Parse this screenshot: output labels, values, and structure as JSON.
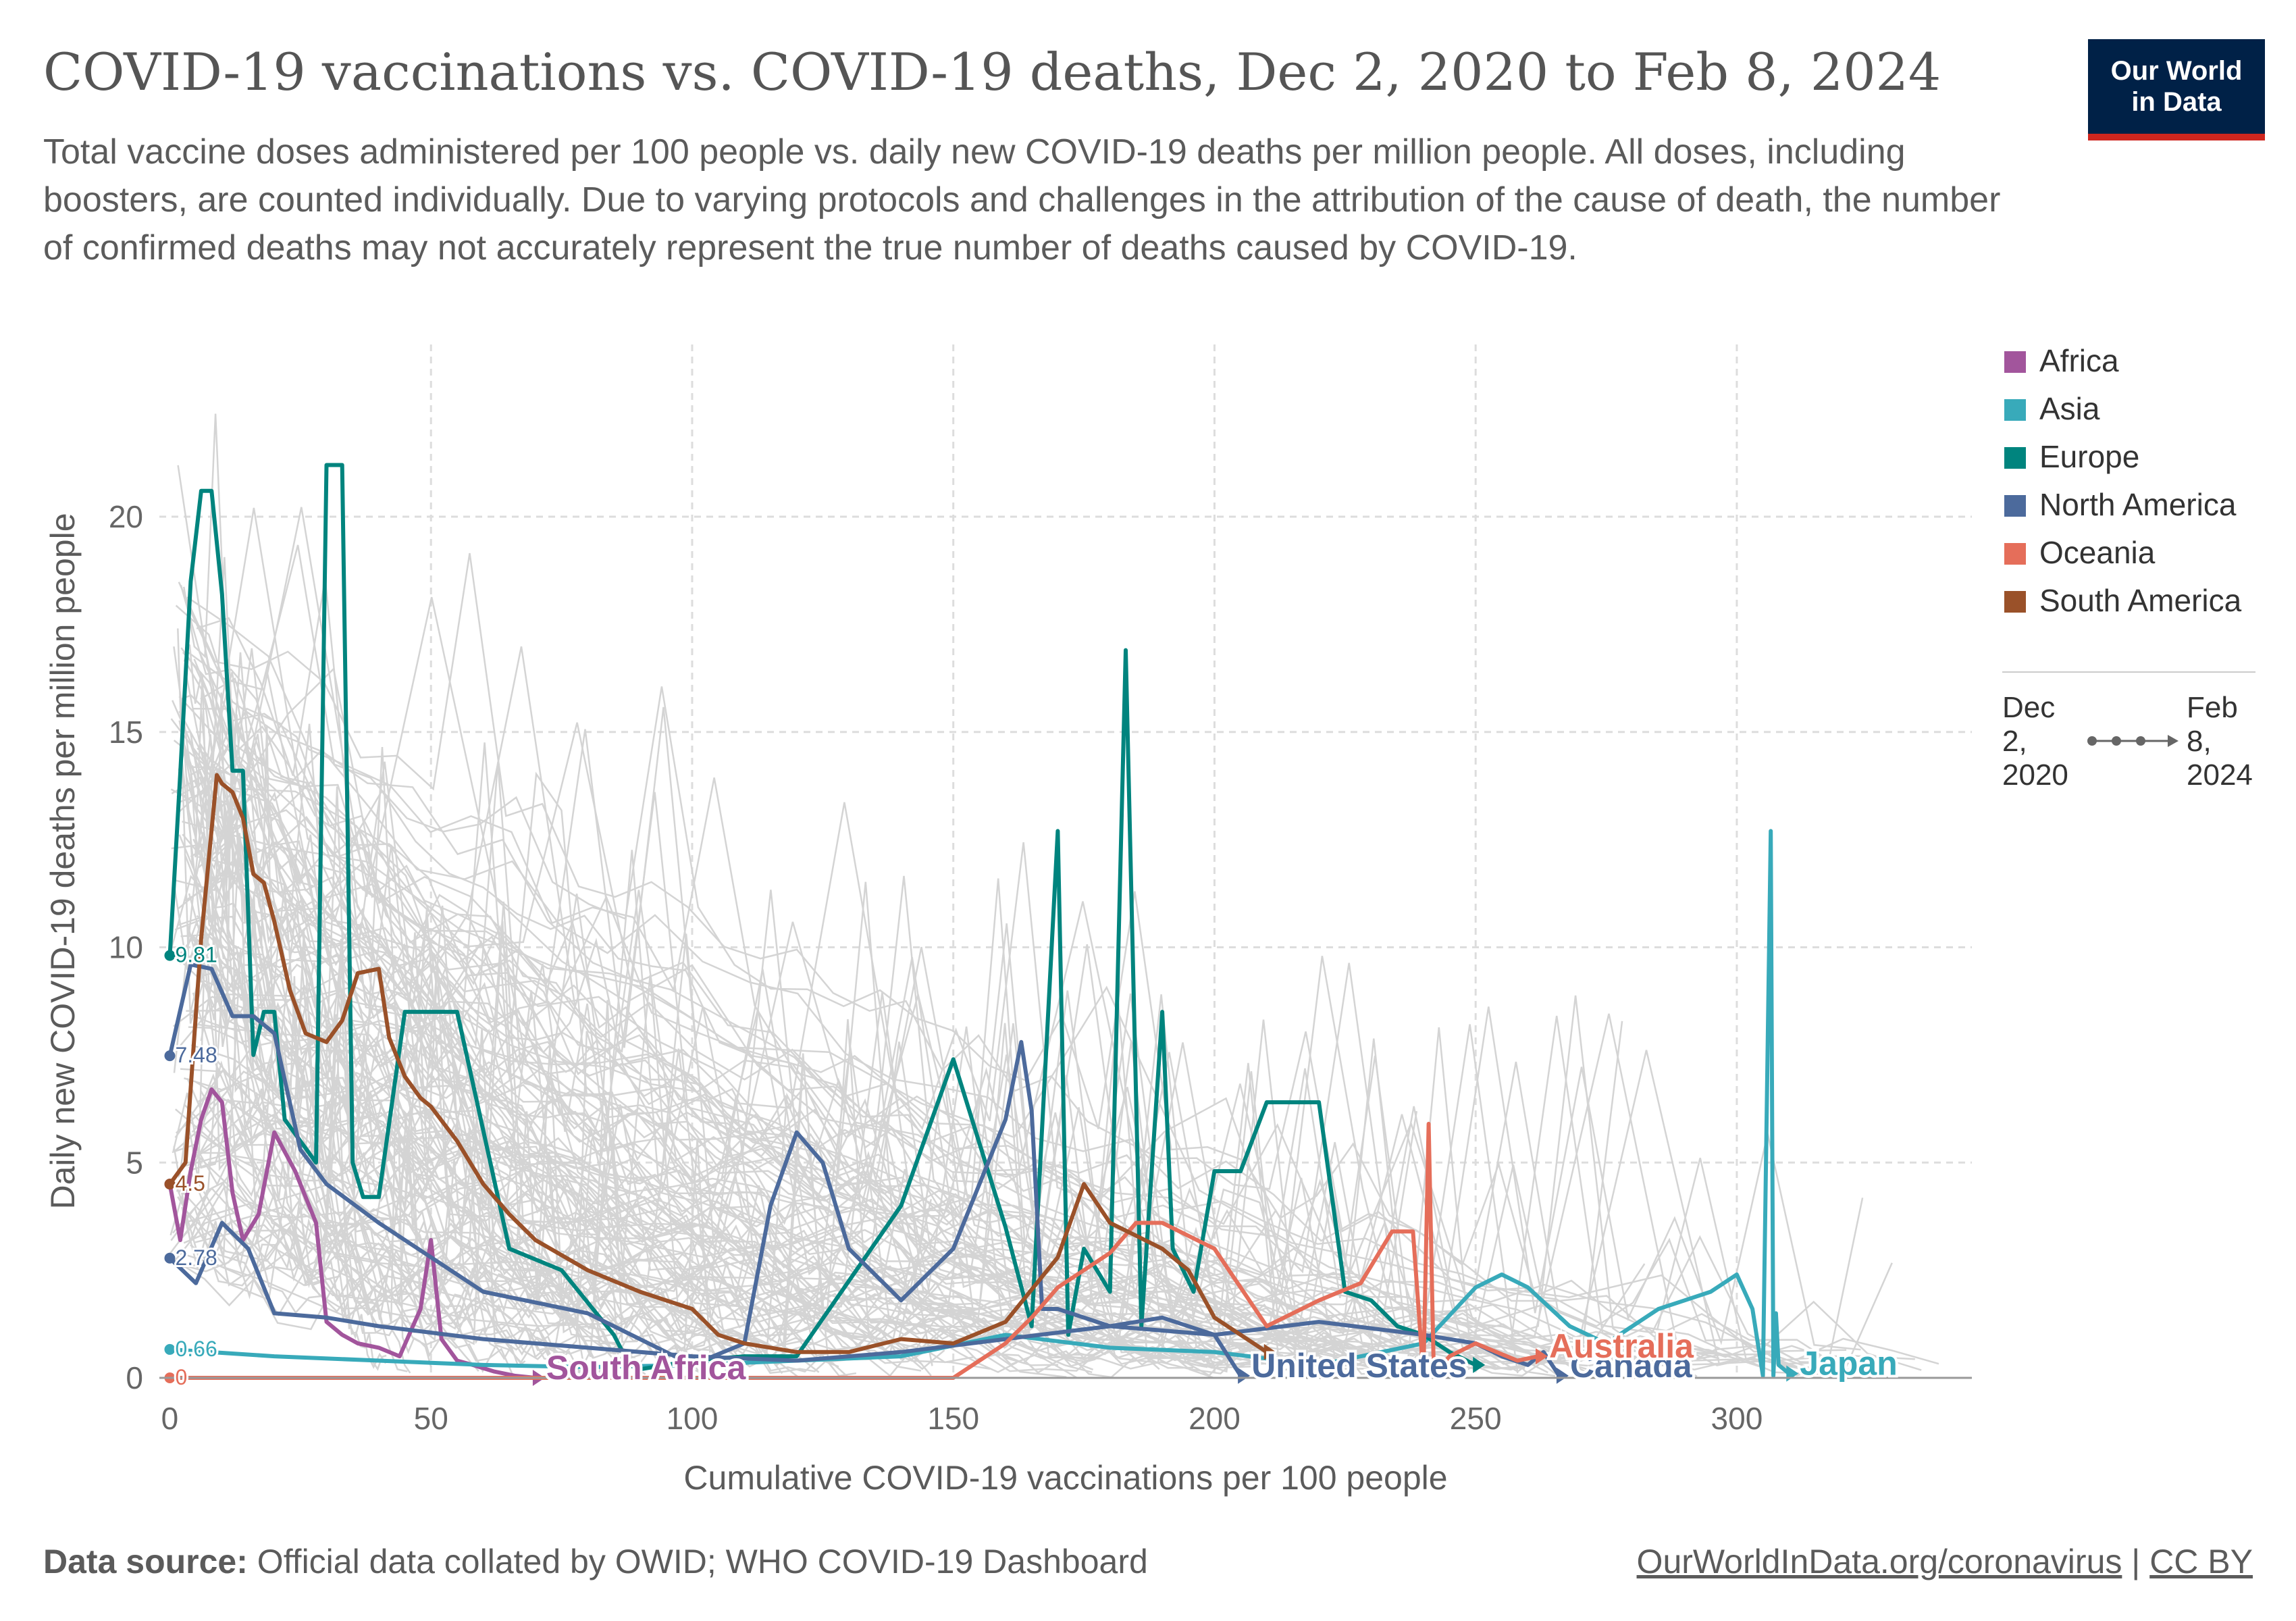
{
  "header": {
    "title": "COVID-19 vaccinations vs. COVID-19 deaths, Dec 2, 2020 to Feb 8, 2024",
    "subtitle": "Total vaccine doses administered per 100 people vs. daily new COVID-19 deaths per million people. All doses, including boosters, are counted individually. Due to varying protocols and challenges in the attribution of the cause of death, the number of confirmed deaths may not accurately represent the true number of deaths caused by COVID-19.",
    "logo_line1": "Our World",
    "logo_line2": "in Data"
  },
  "footer": {
    "source_label": "Data source:",
    "source_text": "Official data collated by OWID; WHO COVID-19 Dashboard",
    "link_text": "OurWorldInData.org/coronavirus",
    "separator": "|",
    "license_text": "CC BY"
  },
  "colors": {
    "Africa": "#a2559c",
    "Asia": "#38aaba",
    "Europe": "#00847e",
    "North America": "#4c6a9c",
    "Oceania": "#e56e5a",
    "South America": "#9a5129",
    "background_lines": "#d4d4d4",
    "grid": "#dddddd",
    "text": "#5b5b5b"
  },
  "time_legend": {
    "start_label": "Dec 2, 2020",
    "end_label": "Feb 8, 2024"
  },
  "chart_data": {
    "type": "line",
    "title": "COVID-19 vaccinations vs. COVID-19 deaths, Dec 2, 2020 to Feb 8, 2024",
    "xlabel": "Cumulative COVID-19 vaccinations per 100 people",
    "ylabel": "Daily new COVID-19 deaths per million people",
    "xlim": [
      -2,
      345
    ],
    "ylim": [
      0,
      24
    ],
    "x_ticks": [
      0,
      50,
      100,
      150,
      200,
      250,
      300
    ],
    "y_ticks": [
      0,
      5,
      10,
      15,
      20
    ],
    "grid": true,
    "legend_position": "right",
    "legend": [
      "Africa",
      "Asia",
      "Europe",
      "North America",
      "Oceania",
      "South America"
    ],
    "series": [
      {
        "name": "South Africa",
        "continent": "Africa",
        "label": "South Africa",
        "x": [
          0,
          2,
          4,
          6,
          8,
          10,
          12,
          14,
          17,
          20,
          24,
          28,
          30,
          33,
          36,
          40,
          44,
          48,
          50,
          52,
          55,
          58,
          62,
          66,
          70
        ],
        "y": [
          4.5,
          3.2,
          4.8,
          6.0,
          6.7,
          6.4,
          4.3,
          3.2,
          3.8,
          5.7,
          4.8,
          3.6,
          1.3,
          1.0,
          0.8,
          0.7,
          0.5,
          1.6,
          3.2,
          0.9,
          0.4,
          0.3,
          0.15,
          0.05,
          0
        ]
      },
      {
        "name": "Japan",
        "continent": "Asia",
        "label": "Japan",
        "x": [
          0,
          20,
          40,
          60,
          80,
          100,
          120,
          140,
          160,
          180,
          200,
          220,
          240,
          250,
          255,
          260,
          268,
          275,
          285,
          290,
          295,
          300,
          303,
          305,
          306.5,
          307,
          307.5,
          308,
          310
        ],
        "y": [
          0.66,
          0.5,
          0.4,
          0.3,
          0.25,
          0.3,
          0.4,
          0.5,
          1.0,
          0.7,
          0.6,
          0.3,
          0.8,
          2.1,
          2.4,
          2.1,
          1.2,
          0.8,
          1.6,
          1.8,
          2.0,
          2.4,
          1.6,
          0.05,
          12.7,
          0.05,
          1.5,
          0.3,
          0.1
        ]
      },
      {
        "name": "Europe (highlighted)",
        "continent": "Europe",
        "x": [
          0,
          2,
          4,
          6,
          8,
          10,
          12,
          14,
          16,
          18,
          20,
          22,
          25,
          28,
          30,
          33,
          35,
          37,
          40,
          45,
          55,
          65,
          75,
          85,
          88,
          90,
          95,
          100,
          110,
          120,
          140,
          150,
          160,
          165,
          170,
          172,
          175,
          180,
          183,
          186,
          190,
          192,
          196,
          200,
          205,
          210,
          220,
          225,
          230,
          235,
          240,
          245,
          250
        ],
        "y": [
          9.81,
          14.02,
          18.5,
          20.6,
          20.6,
          18.2,
          14.1,
          14.1,
          7.5,
          8.5,
          8.5,
          6.0,
          5.5,
          5.0,
          21.2,
          21.2,
          5.0,
          4.2,
          4.2,
          8.5,
          8.5,
          3.0,
          2.5,
          1.0,
          0.3,
          0.2,
          0.3,
          0.4,
          0.5,
          0.5,
          4.0,
          7.4,
          3.5,
          1.2,
          12.7,
          1.0,
          3.0,
          2.0,
          16.9,
          1.2,
          8.5,
          3.0,
          2.0,
          4.8,
          4.8,
          6.4,
          6.4,
          2.0,
          1.8,
          1.2,
          1.0,
          0.6,
          0.3
        ]
      },
      {
        "name": "United States",
        "continent": "North America",
        "label": "United States",
        "x": [
          0,
          4,
          8,
          12,
          16,
          20,
          25,
          30,
          40,
          50,
          60,
          80,
          100,
          110,
          115,
          120,
          125,
          130,
          140,
          150,
          155,
          160,
          163,
          165,
          167,
          170,
          180,
          190,
          200,
          205
        ],
        "y": [
          7.48,
          9.6,
          9.5,
          8.4,
          8.4,
          8.0,
          5.3,
          4.5,
          3.6,
          2.8,
          2.0,
          1.5,
          0.3,
          0.8,
          4.0,
          5.7,
          5.0,
          3.0,
          1.8,
          3.0,
          4.5,
          6.0,
          7.8,
          6.2,
          1.6,
          1.6,
          1.2,
          1.4,
          1.0,
          0.05
        ]
      },
      {
        "name": "Canada",
        "continent": "North America",
        "label": "Canada",
        "x": [
          0,
          5,
          10,
          15,
          20,
          30,
          40,
          60,
          80,
          100,
          120,
          140,
          160,
          180,
          200,
          220,
          240,
          250,
          255,
          260,
          263,
          266
        ],
        "y": [
          2.78,
          2.2,
          3.6,
          3.0,
          1.5,
          1.4,
          1.2,
          0.9,
          0.7,
          0.5,
          0.4,
          0.6,
          0.9,
          1.2,
          1.0,
          1.3,
          1.0,
          0.8,
          0.5,
          0.3,
          0.6,
          0.05
        ]
      },
      {
        "name": "Australia",
        "continent": "Oceania",
        "label": "Australia",
        "x": [
          0,
          50,
          100,
          150,
          160,
          165,
          170,
          180,
          185,
          190,
          200,
          210,
          220,
          228,
          234,
          238,
          240,
          241,
          242,
          243,
          245,
          250,
          258,
          262
        ],
        "y": [
          0,
          0,
          0,
          0,
          0.8,
          1.4,
          2.1,
          2.9,
          3.6,
          3.6,
          3.0,
          1.2,
          1.8,
          2.2,
          3.4,
          3.4,
          0.05,
          5.9,
          0.05,
          0.2,
          0.5,
          0.8,
          0.4,
          0.5
        ]
      },
      {
        "name": "South America (highlighted)",
        "continent": "South America",
        "x": [
          0,
          3,
          6,
          9,
          10,
          12,
          14,
          16,
          18,
          20,
          23,
          26,
          28,
          30,
          33,
          36,
          40,
          42,
          45,
          48,
          50,
          55,
          60,
          65,
          70,
          80,
          90,
          100,
          105,
          110,
          120,
          130,
          140,
          150,
          160,
          170,
          175,
          180,
          185,
          190,
          195,
          200,
          205,
          210
        ],
        "y": [
          4.5,
          5.0,
          10.2,
          14.0,
          13.8,
          13.6,
          13.0,
          11.7,
          11.5,
          10.6,
          9.0,
          8.0,
          7.9,
          7.8,
          8.3,
          9.4,
          9.5,
          7.9,
          7.0,
          6.5,
          6.3,
          5.5,
          4.5,
          3.8,
          3.2,
          2.5,
          2.0,
          1.6,
          1.0,
          0.8,
          0.6,
          0.6,
          0.9,
          0.8,
          1.3,
          2.8,
          4.5,
          3.6,
          3.3,
          3.0,
          2.5,
          1.4,
          1.0,
          0.6
        ]
      }
    ]
  }
}
